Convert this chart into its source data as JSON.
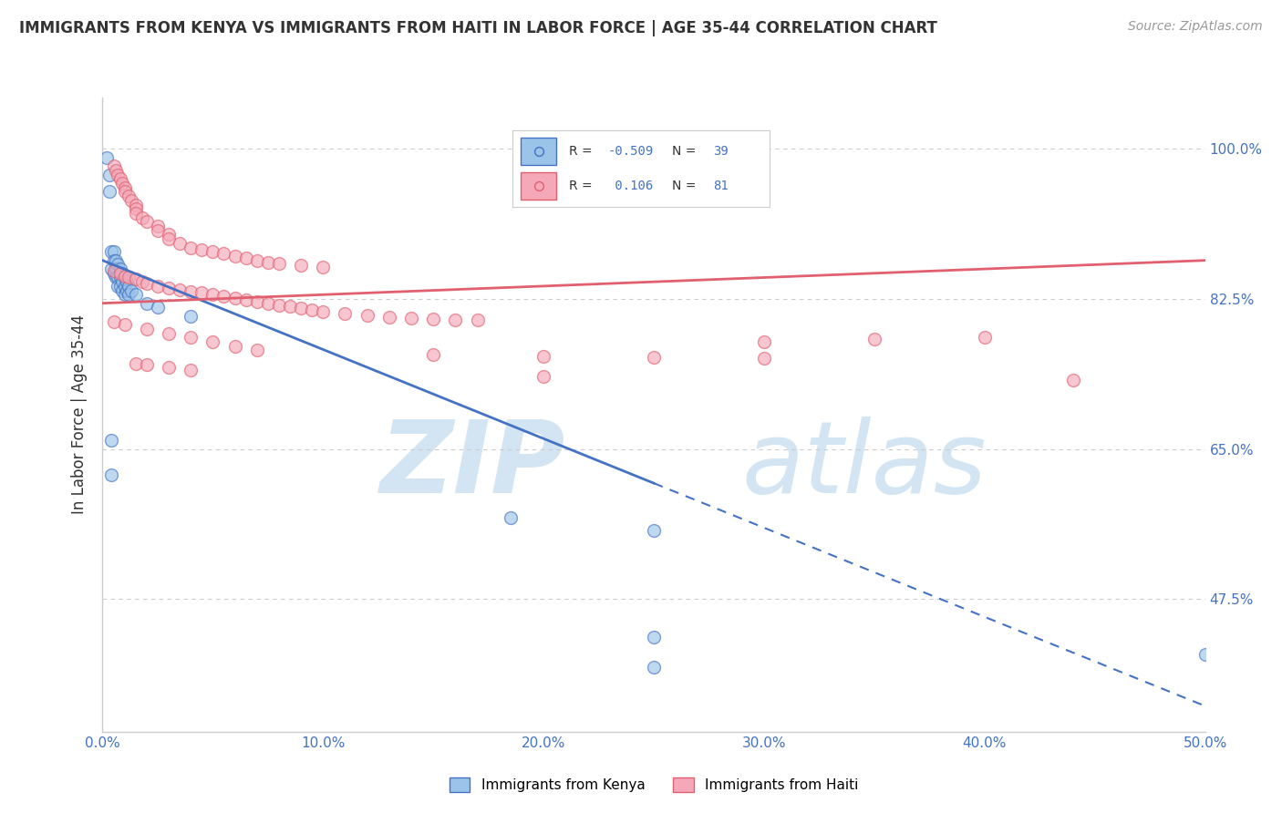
{
  "title": "IMMIGRANTS FROM KENYA VS IMMIGRANTS FROM HAITI IN LABOR FORCE | AGE 35-44 CORRELATION CHART",
  "source": "Source: ZipAtlas.com",
  "ylabel": "In Labor Force | Age 35-44",
  "x_tick_labels": [
    "0.0%",
    "10.0%",
    "20.0%",
    "30.0%",
    "40.0%",
    "50.0%"
  ],
  "x_tick_vals": [
    0.0,
    0.1,
    0.2,
    0.3,
    0.4,
    0.5
  ],
  "y_tick_labels": [
    "47.5%",
    "65.0%",
    "82.5%",
    "100.0%"
  ],
  "y_tick_vals": [
    0.475,
    0.65,
    0.825,
    1.0
  ],
  "xlim": [
    0.0,
    0.5
  ],
  "ylim": [
    0.32,
    1.06
  ],
  "kenya_color": "#9BC4E8",
  "haiti_color": "#F4A8B8",
  "kenya_line_color": "#4472C4",
  "haiti_line_color": "#E06070",
  "kenya_R": -0.509,
  "kenya_N": 39,
  "haiti_R": 0.106,
  "haiti_N": 81,
  "legend_label_kenya": "Immigrants from Kenya",
  "legend_label_haiti": "Immigrants from Haiti",
  "kenya_scatter": [
    [
      0.002,
      0.99
    ],
    [
      0.003,
      0.97
    ],
    [
      0.003,
      0.95
    ],
    [
      0.004,
      0.88
    ],
    [
      0.004,
      0.86
    ],
    [
      0.005,
      0.88
    ],
    [
      0.005,
      0.87
    ],
    [
      0.005,
      0.855
    ],
    [
      0.006,
      0.87
    ],
    [
      0.006,
      0.86
    ],
    [
      0.006,
      0.85
    ],
    [
      0.007,
      0.865
    ],
    [
      0.007,
      0.85
    ],
    [
      0.007,
      0.84
    ],
    [
      0.008,
      0.86
    ],
    [
      0.008,
      0.85
    ],
    [
      0.008,
      0.84
    ],
    [
      0.009,
      0.855
    ],
    [
      0.009,
      0.845
    ],
    [
      0.009,
      0.835
    ],
    [
      0.01,
      0.85
    ],
    [
      0.01,
      0.84
    ],
    [
      0.01,
      0.83
    ],
    [
      0.011,
      0.845
    ],
    [
      0.011,
      0.835
    ],
    [
      0.012,
      0.84
    ],
    [
      0.012,
      0.83
    ],
    [
      0.013,
      0.835
    ],
    [
      0.015,
      0.83
    ],
    [
      0.02,
      0.82
    ],
    [
      0.025,
      0.815
    ],
    [
      0.04,
      0.805
    ],
    [
      0.004,
      0.66
    ],
    [
      0.004,
      0.62
    ],
    [
      0.185,
      0.57
    ],
    [
      0.25,
      0.555
    ],
    [
      0.25,
      0.43
    ],
    [
      0.25,
      0.395
    ],
    [
      0.5,
      0.41
    ]
  ],
  "haiti_scatter": [
    [
      0.005,
      0.98
    ],
    [
      0.006,
      0.975
    ],
    [
      0.007,
      0.97
    ],
    [
      0.008,
      0.965
    ],
    [
      0.009,
      0.96
    ],
    [
      0.01,
      0.955
    ],
    [
      0.01,
      0.95
    ],
    [
      0.012,
      0.945
    ],
    [
      0.013,
      0.94
    ],
    [
      0.015,
      0.935
    ],
    [
      0.015,
      0.93
    ],
    [
      0.015,
      0.925
    ],
    [
      0.018,
      0.92
    ],
    [
      0.02,
      0.915
    ],
    [
      0.025,
      0.91
    ],
    [
      0.025,
      0.905
    ],
    [
      0.03,
      0.9
    ],
    [
      0.03,
      0.895
    ],
    [
      0.035,
      0.89
    ],
    [
      0.04,
      0.885
    ],
    [
      0.045,
      0.882
    ],
    [
      0.05,
      0.88
    ],
    [
      0.055,
      0.878
    ],
    [
      0.06,
      0.875
    ],
    [
      0.065,
      0.873
    ],
    [
      0.07,
      0.87
    ],
    [
      0.075,
      0.868
    ],
    [
      0.08,
      0.866
    ],
    [
      0.09,
      0.864
    ],
    [
      0.1,
      0.862
    ],
    [
      0.005,
      0.858
    ],
    [
      0.008,
      0.855
    ],
    [
      0.01,
      0.852
    ],
    [
      0.012,
      0.85
    ],
    [
      0.015,
      0.848
    ],
    [
      0.018,
      0.845
    ],
    [
      0.02,
      0.843
    ],
    [
      0.025,
      0.84
    ],
    [
      0.03,
      0.838
    ],
    [
      0.035,
      0.836
    ],
    [
      0.04,
      0.834
    ],
    [
      0.045,
      0.832
    ],
    [
      0.05,
      0.83
    ],
    [
      0.055,
      0.828
    ],
    [
      0.06,
      0.826
    ],
    [
      0.065,
      0.824
    ],
    [
      0.07,
      0.822
    ],
    [
      0.075,
      0.82
    ],
    [
      0.08,
      0.818
    ],
    [
      0.085,
      0.816
    ],
    [
      0.09,
      0.814
    ],
    [
      0.095,
      0.812
    ],
    [
      0.1,
      0.81
    ],
    [
      0.11,
      0.808
    ],
    [
      0.12,
      0.806
    ],
    [
      0.13,
      0.804
    ],
    [
      0.14,
      0.803
    ],
    [
      0.15,
      0.802
    ],
    [
      0.16,
      0.801
    ],
    [
      0.17,
      0.8
    ],
    [
      0.005,
      0.798
    ],
    [
      0.01,
      0.795
    ],
    [
      0.02,
      0.79
    ],
    [
      0.03,
      0.785
    ],
    [
      0.04,
      0.78
    ],
    [
      0.05,
      0.775
    ],
    [
      0.06,
      0.77
    ],
    [
      0.07,
      0.765
    ],
    [
      0.3,
      0.775
    ],
    [
      0.35,
      0.778
    ],
    [
      0.4,
      0.78
    ],
    [
      0.15,
      0.76
    ],
    [
      0.2,
      0.758
    ],
    [
      0.25,
      0.757
    ],
    [
      0.3,
      0.756
    ],
    [
      0.015,
      0.75
    ],
    [
      0.02,
      0.748
    ],
    [
      0.03,
      0.745
    ],
    [
      0.04,
      0.742
    ],
    [
      0.2,
      0.735
    ],
    [
      0.44,
      0.73
    ]
  ],
  "background_color": "#ffffff",
  "grid_color": "#cccccc",
  "watermark_color": "#c8dff0"
}
